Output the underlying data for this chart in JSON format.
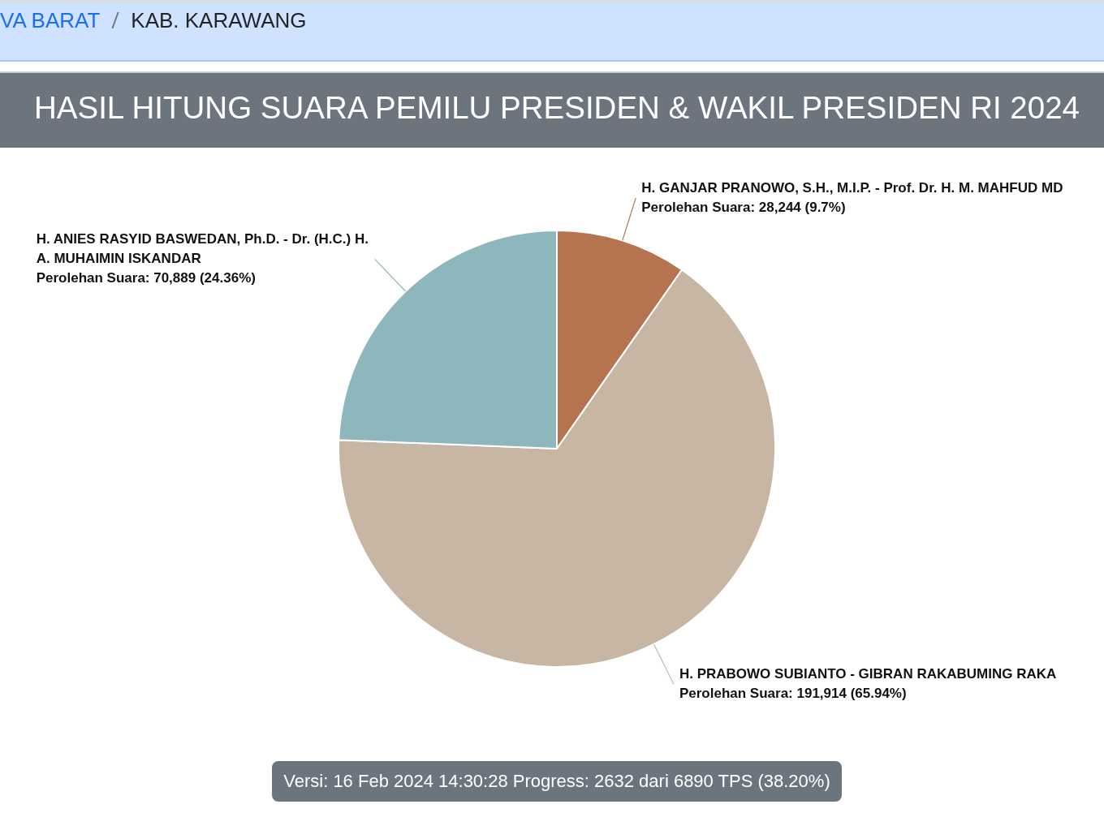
{
  "chart_data": {
    "type": "pie",
    "title": "HASIL HITUNG SUARA PEMILU PRESIDEN & WAKIL PRESIDEN RI 2024",
    "categories": [
      "H. GANJAR PRANOWO, S.H., M.I.P. - Prof. Dr. H. M. MAHFUD MD",
      "H. PRABOWO SUBIANTO - GIBRAN RAKABUMING RAKA",
      "H. ANIES RASYID BASWEDAN, Ph.D. - Dr. (H.C.) H. A. MUHAIMIN ISKANDAR"
    ],
    "values": [
      28244,
      191914,
      70889
    ],
    "colors": [
      "#b57350",
      "#c8b6a4",
      "#8db7bd"
    ],
    "value_labels": [
      "Perolehan Suara: 28,244 (9.7%)",
      "Perolehan Suara: 191,914 (65.94%)",
      "Perolehan Suara: 70,889 (24.36%)"
    ],
    "annotations": [
      "VA BARAT",
      "KAB. KARAWANG",
      "Versi: 16 Feb 2024 14:30:28 Progress: 2632 dari 6890 TPS (38.20%)"
    ]
  }
}
